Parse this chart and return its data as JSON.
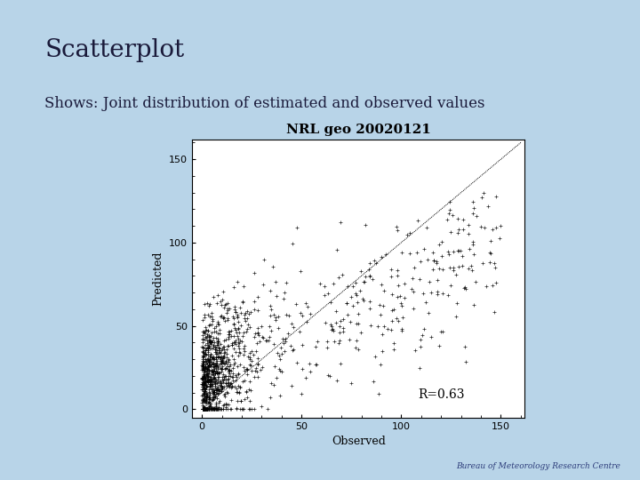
{
  "title": "Scatterplot",
  "subtitle": "Shows: Joint distribution of estimated and observed values",
  "plot_title": "NRL geo 20020121",
  "r_label": "R=0.63",
  "xlabel": "Observed",
  "ylabel": "Predicted",
  "xlim": [
    -5,
    162
  ],
  "ylim": [
    -5,
    162
  ],
  "xticks": [
    0,
    50,
    100,
    150
  ],
  "yticks": [
    0,
    50,
    100,
    150
  ],
  "bg_color": "#b8d4e8",
  "plot_bg_color": "#ffffff",
  "title_color": "#1a1a3a",
  "subtitle_color": "#1a1a3a",
  "title_fontsize": 20,
  "subtitle_fontsize": 12,
  "seed": 42,
  "n_points": 1200
}
